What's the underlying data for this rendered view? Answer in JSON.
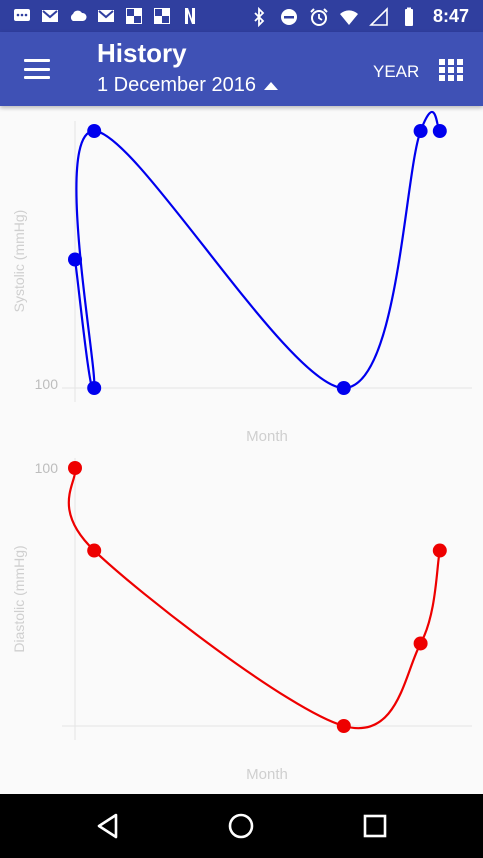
{
  "status_bar": {
    "time": "8:47",
    "left_icons": [
      "chat-icon",
      "gmail-icon",
      "cloud-icon",
      "gmail-icon",
      "news-icon",
      "news-icon",
      "netflix-icon"
    ],
    "right_icons": [
      "bluetooth-icon",
      "do-not-disturb-icon",
      "alarm-icon",
      "wifi-icon",
      "signal-icon",
      "battery-icon"
    ]
  },
  "app_bar": {
    "title": "History",
    "date": "1 December 2016",
    "period_button": "YEAR",
    "background": "#3f51b5",
    "status_background": "#303f9f"
  },
  "chart_data": [
    {
      "type": "line",
      "ylabel": "Systolic (mmHg)",
      "xlabel": "Month",
      "y_tick_labels": [
        "100"
      ],
      "color": "#0000ee",
      "points": [
        {
          "x": 0,
          "y": 0.5
        },
        {
          "x": 1,
          "y": 0.0
        },
        {
          "x": 1,
          "y": 1.0
        },
        {
          "x": 14,
          "y": 0.0
        },
        {
          "x": 18,
          "y": 1.0
        },
        {
          "x": 19,
          "y": 1.0
        }
      ]
    },
    {
      "type": "line",
      "ylabel": "Diastolic (mmHg)",
      "xlabel": "Month",
      "y_tick_labels": [
        "100"
      ],
      "color": "#ee0000",
      "points": [
        {
          "x": 0,
          "y": 1.0
        },
        {
          "x": 1,
          "y": 0.68
        },
        {
          "x": 14,
          "y": 0.0
        },
        {
          "x": 18,
          "y": 0.32
        },
        {
          "x": 19,
          "y": 0.68
        }
      ]
    }
  ]
}
